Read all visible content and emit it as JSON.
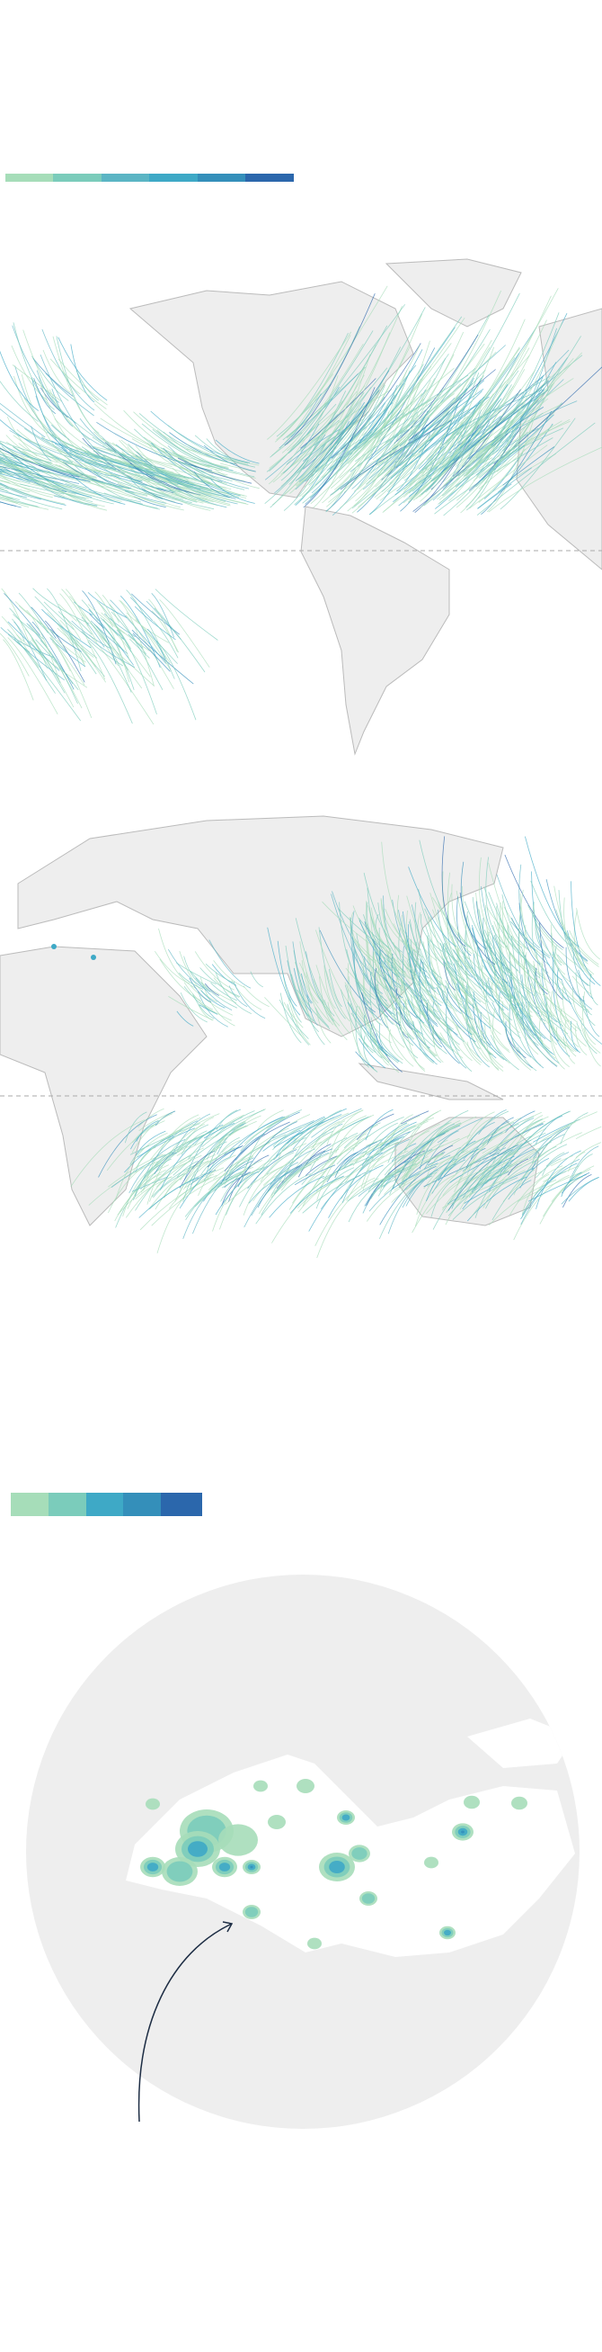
{
  "legend_lines": {
    "colors": [
      "#a6ddb9",
      "#7bccbb",
      "#5bb5c4",
      "#3ea9c6",
      "#348fba",
      "#2b67ac"
    ]
  },
  "legend_squares": {
    "colors": [
      "#a6ddb9",
      "#7bccbb",
      "#3ea9c6",
      "#348fba",
      "#2b67ac"
    ]
  },
  "colors": {
    "land": "#eeeeee",
    "land_stroke": "#bbbbbb",
    "equator": "#aaaaaa",
    "arrow": "#1d2d44"
  },
  "map_western_hemisphere": {
    "icon": "world-map-tracks"
  },
  "map_eastern_hemisphere": {
    "icon": "world-map-tracks"
  },
  "map_mediterranean": {
    "icon": "density-map"
  }
}
